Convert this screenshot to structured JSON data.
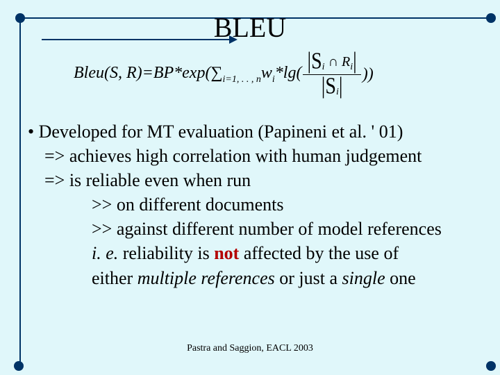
{
  "title": "BLEU",
  "formula": {
    "lead": "Bleu(S, R)=BP*exp(∑",
    "sub_i": "i=1, . . , n",
    "mid": "w",
    "sub_w": "i",
    "lg": "*lg(",
    "frac_top_left": "|S",
    "frac_top_sub1": "i",
    "frac_top_cap": " ∩ R",
    "frac_top_sub2": "i",
    "frac_top_right": "|",
    "frac_bot_left": "|S",
    "frac_bot_sub": "i",
    "frac_bot_right": " |",
    "tail": "))"
  },
  "bullets": {
    "line1": "• Developed for MT evaluation (Papineni et al. ' 01)",
    "line2": "=> achieves high correlation with human judgement",
    "line3": "=> is reliable even when run",
    "line4": ">> on different documents",
    "line5": ">> against different number of model references",
    "line6a": "i. e.",
    "line6b": " reliability is ",
    "line6_not": "not",
    "line6c": " affected by the use of",
    "line7a": "either ",
    "line7b": "multiple references",
    "line7c": " or just a ",
    "line7d": "single",
    "line7e": " one"
  },
  "footer": "Pastra and Saggion, EACL 2003",
  "colors": {
    "background": "#e0f7fa",
    "accent": "#003366",
    "not_color": "#b30000",
    "text": "#000000"
  }
}
